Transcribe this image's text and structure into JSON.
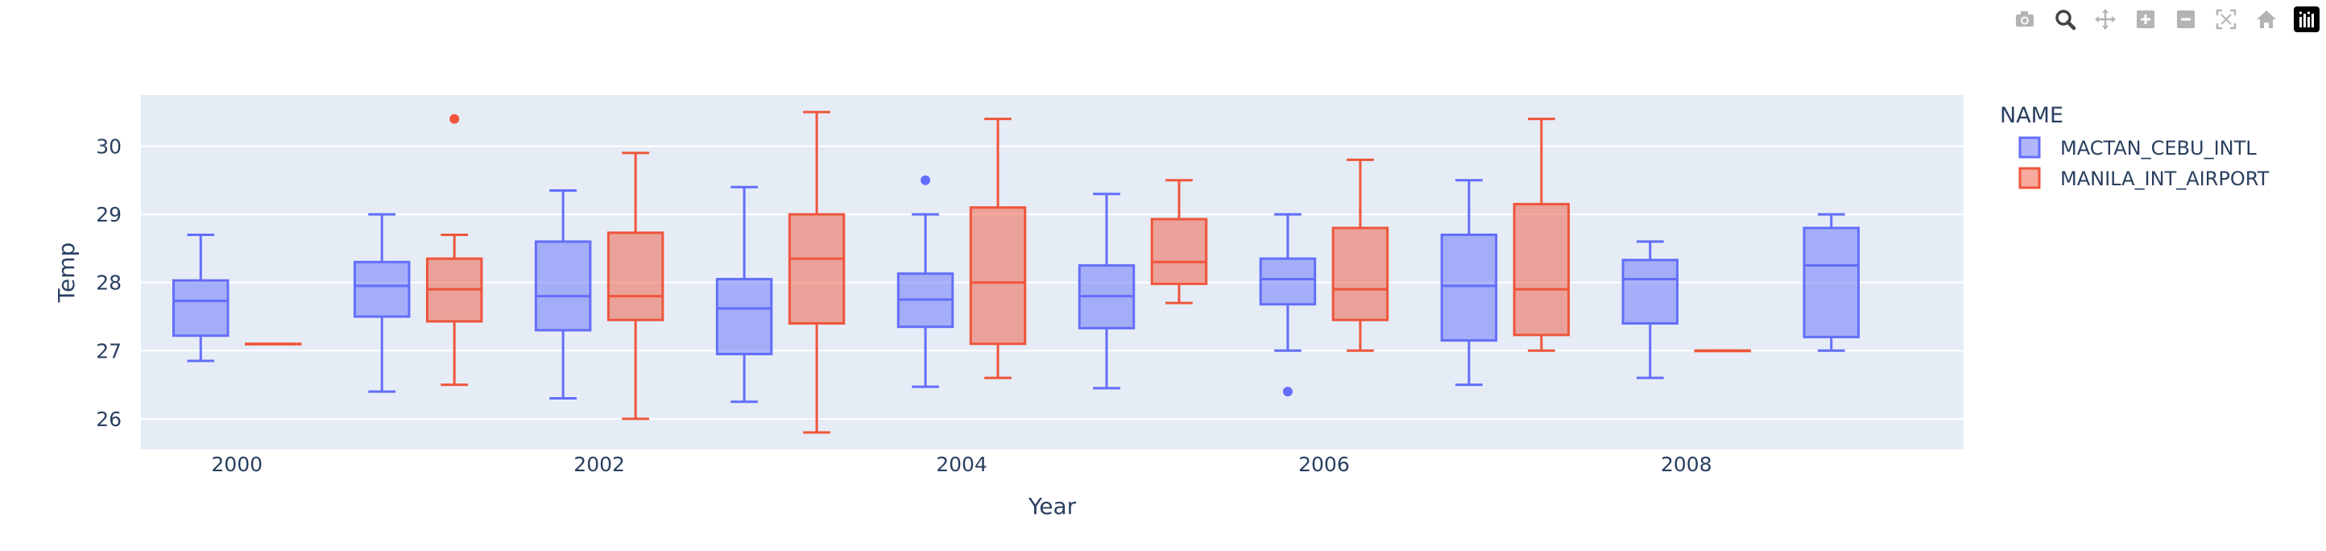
{
  "modebar": {
    "buttons": [
      {
        "name": "camera-icon",
        "active": false
      },
      {
        "name": "zoom-icon",
        "active": true
      },
      {
        "name": "pan-icon",
        "active": false
      },
      {
        "name": "zoom-in-icon",
        "active": false
      },
      {
        "name": "zoom-out-icon",
        "active": false
      },
      {
        "name": "autoscale-icon",
        "active": false
      },
      {
        "name": "reset-axes-icon",
        "active": false
      },
      {
        "name": "plotly-logo-icon",
        "active": false
      }
    ]
  },
  "colors": {
    "plot_bg": "#e5ecf6",
    "grid": "#ffffff",
    "text": "#2a3f5f",
    "series_colors": [
      "#636efa",
      "#EF553B"
    ]
  },
  "chart_data": {
    "type": "box",
    "title": "",
    "xlabel": "Year",
    "ylabel": "Temp",
    "xlim": [
      1999.47,
      2009.53
    ],
    "ylim": [
      25.55,
      30.75
    ],
    "x_ticks": [
      2000,
      2002,
      2004,
      2006,
      2008
    ],
    "y_ticks": [
      26,
      27,
      28,
      29,
      30
    ],
    "grid": true,
    "legend_title": "NAME",
    "legend_position": "top-right, outside plot",
    "series": [
      {
        "name": "MACTAN_CEBU_INTL",
        "boxes": [
          {
            "x": 2000,
            "min": 26.85,
            "q1": 27.22,
            "median": 27.73,
            "q3": 28.03,
            "max": 28.7,
            "outliers": []
          },
          {
            "x": 2001,
            "min": 26.4,
            "q1": 27.5,
            "median": 27.95,
            "q3": 28.3,
            "max": 29.0,
            "outliers": []
          },
          {
            "x": 2002,
            "min": 26.3,
            "q1": 27.3,
            "median": 27.8,
            "q3": 28.6,
            "max": 29.35,
            "outliers": []
          },
          {
            "x": 2003,
            "min": 26.25,
            "q1": 26.95,
            "median": 27.62,
            "q3": 28.05,
            "max": 29.4,
            "outliers": []
          },
          {
            "x": 2004,
            "min": 26.47,
            "q1": 27.35,
            "median": 27.75,
            "q3": 28.13,
            "max": 29.0,
            "outliers": [
              29.5
            ]
          },
          {
            "x": 2005,
            "min": 26.45,
            "q1": 27.33,
            "median": 27.8,
            "q3": 28.25,
            "max": 29.3,
            "outliers": []
          },
          {
            "x": 2006,
            "min": 27.0,
            "q1": 27.68,
            "median": 28.05,
            "q3": 28.35,
            "max": 29.0,
            "outliers": [
              26.4
            ]
          },
          {
            "x": 2007,
            "min": 26.5,
            "q1": 27.15,
            "median": 27.95,
            "q3": 28.7,
            "max": 29.5,
            "outliers": []
          },
          {
            "x": 2008,
            "min": 26.6,
            "q1": 27.4,
            "median": 28.05,
            "q3": 28.33,
            "max": 28.6,
            "outliers": []
          },
          {
            "x": 2009,
            "min": 27.0,
            "q1": 27.2,
            "median": 28.25,
            "q3": 28.8,
            "max": 29.0,
            "outliers": []
          }
        ]
      },
      {
        "name": "MANILA_INT_AIRPORT",
        "boxes": [
          {
            "x": 2000,
            "min": 27.1,
            "q1": 27.1,
            "median": 27.1,
            "q3": 27.1,
            "max": 27.1,
            "outliers": []
          },
          {
            "x": 2001,
            "min": 26.5,
            "q1": 27.43,
            "median": 27.9,
            "q3": 28.35,
            "max": 28.7,
            "outliers": [
              30.4
            ]
          },
          {
            "x": 2002,
            "min": 26.0,
            "q1": 27.45,
            "median": 27.8,
            "q3": 28.73,
            "max": 29.9,
            "outliers": []
          },
          {
            "x": 2003,
            "min": 25.8,
            "q1": 27.4,
            "median": 28.35,
            "q3": 29.0,
            "max": 30.5,
            "outliers": []
          },
          {
            "x": 2004,
            "min": 26.6,
            "q1": 27.1,
            "median": 28.0,
            "q3": 29.1,
            "max": 30.4,
            "outliers": []
          },
          {
            "x": 2005,
            "min": 27.7,
            "q1": 27.98,
            "median": 28.3,
            "q3": 28.93,
            "max": 29.5,
            "outliers": []
          },
          {
            "x": 2006,
            "min": 27.0,
            "q1": 27.45,
            "median": 27.9,
            "q3": 28.8,
            "max": 29.8,
            "outliers": []
          },
          {
            "x": 2007,
            "min": 27.0,
            "q1": 27.23,
            "median": 27.9,
            "q3": 29.15,
            "max": 30.4,
            "outliers": []
          },
          {
            "x": 2008,
            "min": 27.0,
            "q1": 27.0,
            "median": 27.0,
            "q3": 27.0,
            "max": 27.0,
            "outliers": []
          }
        ]
      }
    ]
  }
}
